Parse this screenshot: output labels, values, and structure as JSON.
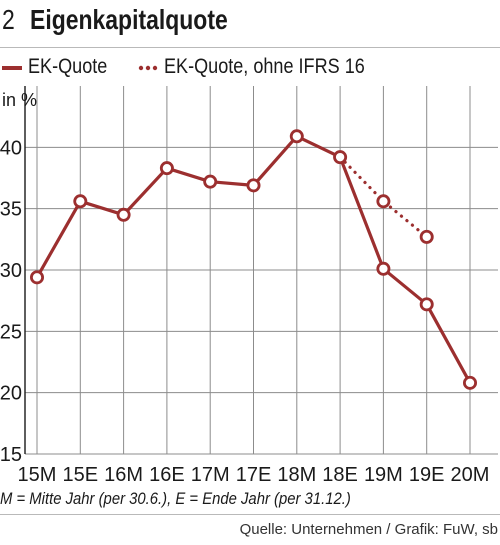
{
  "header": {
    "number": "2",
    "title": "Eigenkapitalquote"
  },
  "colors": {
    "series": "#9c2f2f",
    "grid": "#8c8c8c",
    "axis": "#1a1a1a"
  },
  "chart_data": {
    "type": "line",
    "categories": [
      "15M",
      "15E",
      "16M",
      "16E",
      "17M",
      "17E",
      "18M",
      "18E",
      "19M",
      "19E",
      "20M"
    ],
    "ylabel": "in %",
    "ylim": [
      15,
      45
    ],
    "yticks": [
      15,
      20,
      25,
      30,
      35,
      40
    ],
    "grid": true,
    "legend_position": "top-left",
    "series": [
      {
        "name": "EK-Quote",
        "style": "solid",
        "values": [
          29.4,
          35.6,
          34.5,
          38.3,
          37.2,
          36.9,
          40.9,
          39.2,
          30.1,
          27.2,
          20.8
        ]
      },
      {
        "name": "EK-Quote, ohne IFRS 16",
        "style": "dotted",
        "values": [
          null,
          null,
          null,
          null,
          null,
          null,
          null,
          39.2,
          35.6,
          32.7,
          null
        ]
      }
    ]
  },
  "footnote": "M = Mitte Jahr (per 30.6.), E = Ende Jahr (per 31.12.)",
  "source": "Quelle: Unternehmen / Grafik: FuW, sb"
}
